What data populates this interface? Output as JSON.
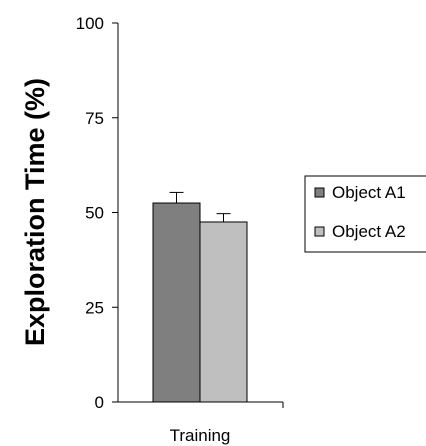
{
  "chart_data": {
    "type": "bar",
    "ylabel": "Exploration Time (%)",
    "xlabel": "",
    "ylim": [
      0,
      100
    ],
    "yticks": [
      0,
      25,
      50,
      75,
      100
    ],
    "yticks_text": [
      "0",
      "25",
      "50",
      "75",
      "100"
    ],
    "categories": [
      "Training"
    ],
    "grid": false,
    "legend_position": "right",
    "series": [
      {
        "name": "Object A1",
        "values": [
          52.5
        ],
        "error": [
          2.8
        ],
        "color": "#7f7f7f"
      },
      {
        "name": "Object A2",
        "values": [
          47.5
        ],
        "error": [
          2.2
        ],
        "color": "#bfbfbf"
      }
    ]
  }
}
